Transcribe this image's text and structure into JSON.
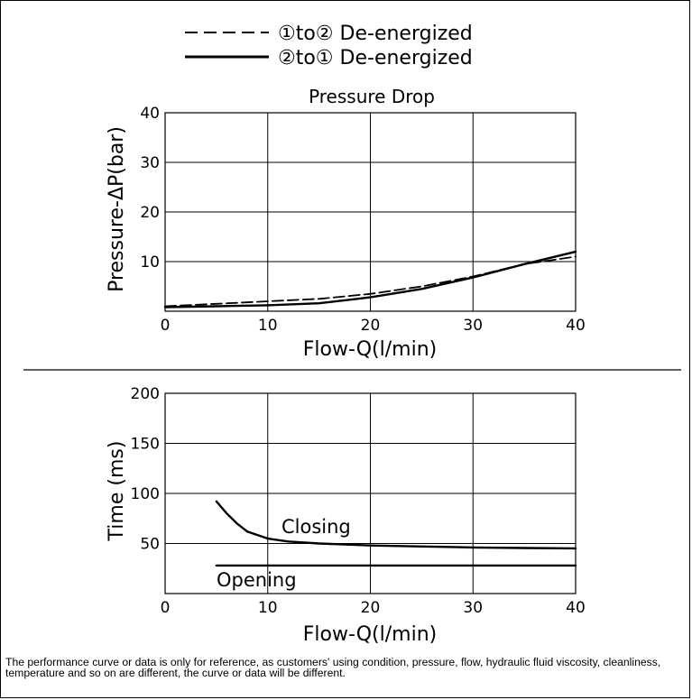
{
  "legend": {
    "entries": [
      {
        "label": "①to② De-energized",
        "style": "dashed"
      },
      {
        "label": "②to① De-energized",
        "style": "solid"
      }
    ]
  },
  "footnote": "The performance curve or data is only for reference, as customers' using condition, pressure, flow, hydraulic fluid viscosity, cleanliness, temperature and so on are different, the curve or data will be different.",
  "chart_data": [
    {
      "type": "line",
      "title": "Pressure Drop",
      "xlabel": "Flow-Q(l/min)",
      "ylabel": "Pressure-ΔP(bar)",
      "xlim": [
        0,
        40
      ],
      "ylim": [
        0,
        40
      ],
      "x_ticks": [
        "0",
        "10",
        "20",
        "30",
        "40"
      ],
      "y_ticks": [
        "10",
        "20",
        "30",
        "40"
      ],
      "grid": true,
      "series": [
        {
          "name": "①to② De-energized",
          "style": "dashed",
          "x": [
            0,
            5,
            10,
            15,
            20,
            25,
            30,
            35,
            40
          ],
          "y": [
            1.0,
            1.5,
            2.0,
            2.5,
            3.5,
            5.0,
            7.0,
            9.5,
            11.0
          ]
        },
        {
          "name": "②to① De-energized",
          "style": "solid",
          "x": [
            0,
            5,
            10,
            15,
            20,
            25,
            30,
            35,
            40
          ],
          "y": [
            0.8,
            1.0,
            1.2,
            1.6,
            2.8,
            4.5,
            6.8,
            9.5,
            12.0
          ]
        }
      ]
    },
    {
      "type": "line",
      "title": "",
      "xlabel": "Flow-Q(l/min)",
      "ylabel": "Time (ms)",
      "xlim": [
        0,
        40
      ],
      "ylim": [
        0,
        200
      ],
      "x_ticks": [
        "0",
        "10",
        "20",
        "30",
        "40"
      ],
      "y_ticks": [
        "50",
        "100",
        "150",
        "200"
      ],
      "grid": true,
      "series": [
        {
          "name": "Closing",
          "style": "solid",
          "x": [
            5,
            6,
            7,
            8,
            10,
            12,
            15,
            20,
            25,
            30,
            35,
            40
          ],
          "y": [
            92,
            80,
            70,
            62,
            55,
            52,
            50,
            48,
            47,
            46,
            45.5,
            45
          ]
        },
        {
          "name": "Opening",
          "style": "solid",
          "x": [
            5,
            40
          ],
          "y": [
            28,
            28
          ]
        }
      ]
    }
  ]
}
